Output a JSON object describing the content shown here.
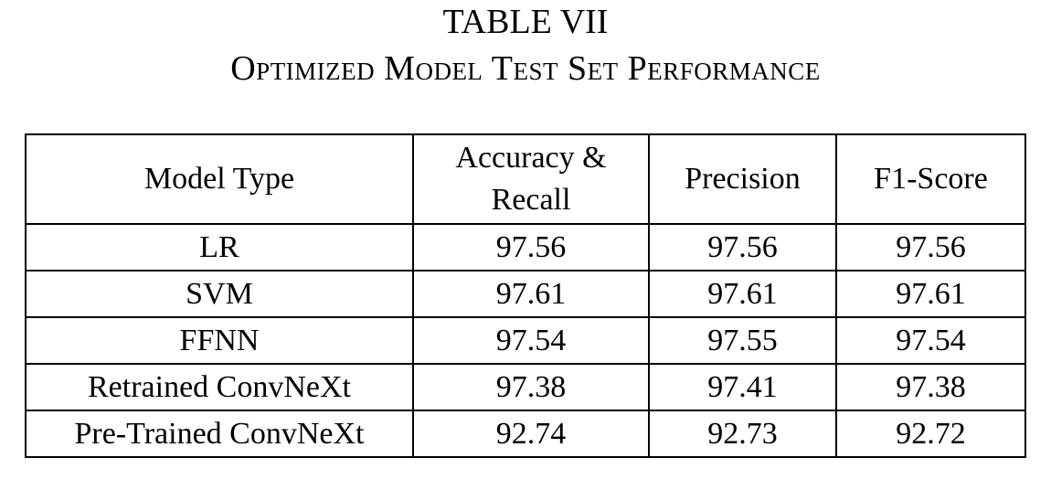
{
  "table_number": "TABLE VII",
  "caption": "Optimized Model Test Set Performance",
  "headers": [
    "Model Type",
    "Accuracy & Recall",
    "Precision",
    "F1-Score"
  ],
  "rows": [
    [
      "LR",
      "97.56",
      "97.56",
      "97.56"
    ],
    [
      "SVM",
      "97.61",
      "97.61",
      "97.61"
    ],
    [
      "FFNN",
      "97.54",
      "97.55",
      "97.54"
    ],
    [
      "Retrained ConvNeXt",
      "97.38",
      "97.41",
      "97.38"
    ],
    [
      "Pre-Trained ConvNeXt",
      "92.74",
      "92.73",
      "92.72"
    ]
  ]
}
